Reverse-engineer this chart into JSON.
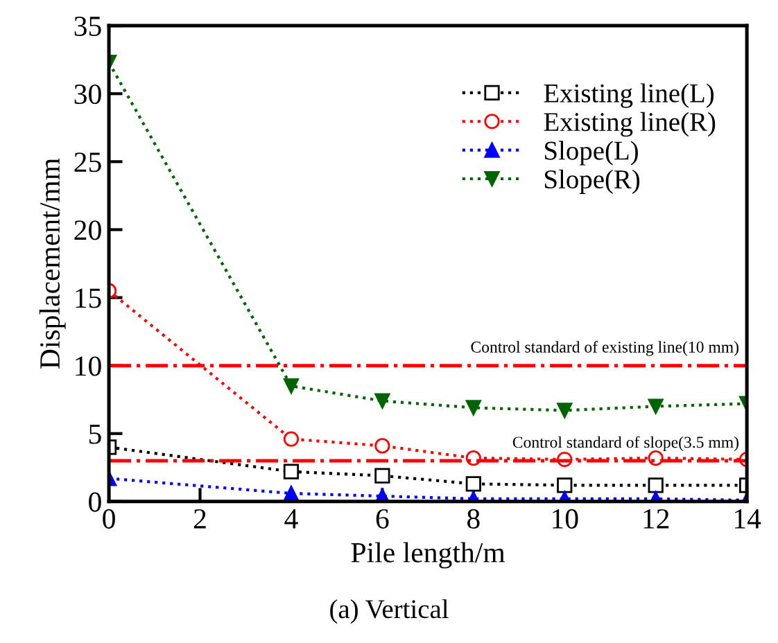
{
  "chart_data": {
    "type": "line",
    "xlabel": "Pile length/m",
    "ylabel": "Displacement/mm",
    "x": [
      0,
      4,
      6,
      8,
      10,
      12,
      14
    ],
    "series": [
      {
        "name": "Existing line(L)",
        "color": "#000000",
        "marker": "square",
        "values": [
          4.0,
          2.2,
          1.9,
          1.3,
          1.2,
          1.2,
          1.2
        ]
      },
      {
        "name": "Existing line(R)",
        "color": "#ff0000",
        "marker": "circle",
        "values": [
          15.5,
          4.6,
          4.1,
          3.2,
          3.1,
          3.2,
          3.1
        ]
      },
      {
        "name": "Slope(L)",
        "color": "#0000ff",
        "marker": "triangle",
        "values": [
          1.7,
          0.6,
          0.4,
          0.2,
          0.2,
          0.2,
          0.1
        ]
      },
      {
        "name": "Slope(R)",
        "color": "#006400",
        "marker": "triangle_down",
        "values": [
          32.3,
          8.5,
          7.4,
          6.9,
          6.7,
          7.0,
          7.2
        ]
      }
    ],
    "line_style": "dotted",
    "ref_lines": [
      {
        "axis": "y",
        "value": 10,
        "label": "Control standard of existing line(10 mm)",
        "color": "#ff0000",
        "line_style": "dashdot"
      },
      {
        "axis": "y",
        "value": 3,
        "label": "Control standard of slope(3.5 mm)",
        "color": "#ff0000",
        "line_style": "dashdot"
      }
    ],
    "xlim": [
      0,
      14
    ],
    "xticks": [
      0,
      2,
      4,
      6,
      8,
      10,
      12,
      14
    ],
    "ylim": [
      0,
      35
    ],
    "yticks": [
      0,
      5,
      10,
      15,
      20,
      25,
      30,
      35
    ],
    "grid": false,
    "legend": "top right",
    "annotations": [
      "(a) Vertical"
    ]
  }
}
